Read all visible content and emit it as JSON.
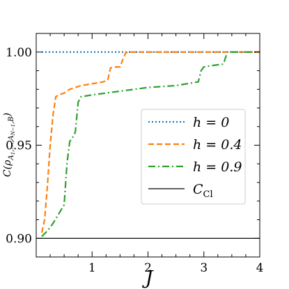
{
  "chart_data": {
    "type": "line",
    "xlabel": "J",
    "ylabel": "C(ρ_{A_1,...,A_{N-1},B})",
    "xlim": [
      0,
      4
    ],
    "ylim": [
      0.89,
      1.01
    ],
    "xticks": [
      1,
      2,
      3,
      4
    ],
    "xtick_labels": [
      "1",
      "2",
      "3",
      "4"
    ],
    "yticks": [
      0.9,
      0.95,
      1.0
    ],
    "ytick_labels": [
      "0.90",
      "0.95",
      "1.00"
    ],
    "grid": false,
    "legend_position": "center-right",
    "series": [
      {
        "name": "h = 0",
        "color": "#1f77b4",
        "dash": "dotted",
        "x": [
          0.1,
          4.0
        ],
        "y": [
          1.0,
          1.0
        ]
      },
      {
        "name": "h = 0.4",
        "color": "#ff7f0e",
        "dash": "dashed",
        "x": [
          0.1,
          0.15,
          0.2,
          0.25,
          0.3,
          0.35,
          0.4,
          0.5,
          0.6,
          0.7,
          0.8,
          1.0,
          1.2,
          1.28,
          1.33,
          1.4,
          1.5,
          1.55,
          1.6,
          1.65,
          2.0,
          2.5,
          3.0,
          3.5,
          4.0
        ],
        "y": [
          0.903,
          0.91,
          0.928,
          0.95,
          0.966,
          0.976,
          0.977,
          0.978,
          0.98,
          0.981,
          0.982,
          0.983,
          0.984,
          0.985,
          0.9915,
          0.992,
          0.992,
          0.996,
          0.9995,
          1.0,
          1.0,
          1.0,
          1.0,
          1.0,
          1.0
        ]
      },
      {
        "name": "h = 0.9",
        "color": "#2ca02c",
        "dash": "dashdot",
        "x": [
          0.1,
          0.2,
          0.3,
          0.4,
          0.5,
          0.55,
          0.6,
          0.65,
          0.7,
          0.75,
          0.8,
          1.0,
          1.5,
          2.0,
          2.5,
          2.9,
          2.95,
          3.0,
          3.2,
          3.35,
          3.42,
          3.5,
          4.0
        ],
        "y": [
          0.901,
          0.904,
          0.908,
          0.913,
          0.918,
          0.94,
          0.952,
          0.954,
          0.957,
          0.973,
          0.976,
          0.977,
          0.979,
          0.981,
          0.982,
          0.984,
          0.99,
          0.992,
          0.993,
          0.9935,
          1.0,
          1.0,
          1.0
        ]
      },
      {
        "name": "C_Cl",
        "color": "#000000",
        "dash": "solid",
        "x": [
          0.0,
          4.0
        ],
        "y": [
          0.9,
          0.9
        ]
      }
    ]
  }
}
